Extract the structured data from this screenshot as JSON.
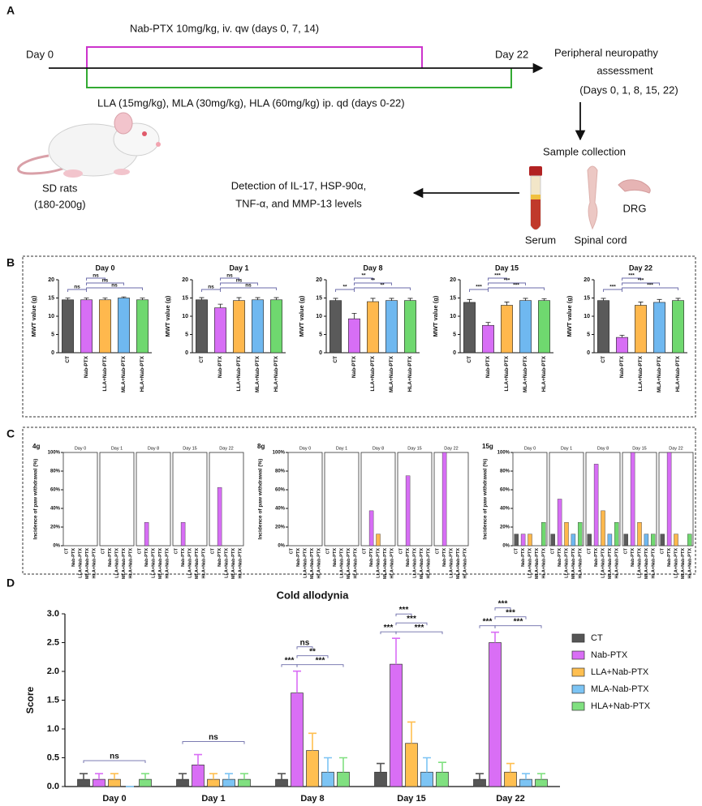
{
  "panel_labels": [
    "A",
    "B",
    "C",
    "D"
  ],
  "diagram": {
    "dose_nab": "Nab-PTX 10mg/kg, iv. qw (days 0, 7, 14)",
    "day_start": "Day 0",
    "day_end": "Day 22",
    "dose_la": "LLA (15mg/kg), MLA (30mg/kg), HLA (60mg/kg) ip. qd (days 0-22)",
    "assessment": [
      "Peripheral neuropathy",
      "assessment",
      "(Days 0, 1, 8, 15, 22)"
    ],
    "rats": [
      "SD rats",
      "(180-200g)"
    ],
    "collection": "Sample collection",
    "detection": [
      "Detection of IL-17, HSP-90α,",
      "TNF-α, and MMP-13 levels"
    ],
    "samples": [
      "Serum",
      "Spinal cord",
      "DRG"
    ]
  },
  "chart_data": [
    {
      "type": "bar",
      "title": "Day 0",
      "ylabel": "MWT value (g)",
      "categories": [
        "CT",
        "Nab-PTX",
        "LLA+Nab-PTX",
        "MLA+Nab-PTX",
        "HLA+Nab-PTX"
      ],
      "colors": [
        "#5a5a5a",
        "#d76ef5",
        "#ffb84d",
        "#6fb8f0",
        "#6fd86f"
      ],
      "values": [
        14.5,
        14.5,
        14.5,
        15,
        14.5
      ],
      "errors": [
        0.5,
        0.5,
        0.5,
        0.3,
        0.5
      ],
      "ylim": [
        0,
        20
      ],
      "yticks": [
        0,
        5,
        10,
        15,
        20
      ],
      "annotations": [
        "ns",
        "ns",
        "ns",
        "ns"
      ]
    },
    {
      "type": "bar",
      "title": "Day 1",
      "ylabel": "MWT value (g)",
      "categories": [
        "CT",
        "Nab-PTX",
        "LLA+Nab-PTX",
        "MLA+Nab-PTX",
        "HLA+Nab-PTX"
      ],
      "colors": [
        "#5a5a5a",
        "#d76ef5",
        "#ffb84d",
        "#6fb8f0",
        "#6fd86f"
      ],
      "values": [
        14.5,
        12.3,
        14.3,
        14.5,
        14.5
      ],
      "errors": [
        0.6,
        1.0,
        0.8,
        0.6,
        0.6
      ],
      "ylim": [
        0,
        20
      ],
      "yticks": [
        0,
        5,
        10,
        15,
        20
      ],
      "annotations": [
        "ns",
        "ns",
        "ns",
        "ns"
      ]
    },
    {
      "type": "bar",
      "title": "Day 8",
      "ylabel": "MWT value (g)",
      "categories": [
        "CT",
        "Nab-PTX",
        "LLA+Nab-PTX",
        "MLA+Nab-PTX",
        "HLA+Nab-PTX"
      ],
      "colors": [
        "#5a5a5a",
        "#d76ef5",
        "#ffb84d",
        "#6fb8f0",
        "#6fd86f"
      ],
      "values": [
        14.3,
        9.3,
        14.0,
        14.3,
        14.3
      ],
      "errors": [
        0.6,
        1.5,
        0.9,
        0.6,
        0.6
      ],
      "ylim": [
        0,
        20
      ],
      "yticks": [
        0,
        5,
        10,
        15,
        20
      ],
      "annotations": [
        "**",
        "**",
        "**",
        "**"
      ]
    },
    {
      "type": "bar",
      "title": "Day 15",
      "ylabel": "MWT value (g)",
      "categories": [
        "CT",
        "Nab-PTX",
        "LLA+Nab-PTX",
        "MLA+Nab-PTX",
        "HLA+Nab-PTX"
      ],
      "colors": [
        "#5a5a5a",
        "#d76ef5",
        "#ffb84d",
        "#6fb8f0",
        "#6fd86f"
      ],
      "values": [
        13.8,
        7.5,
        13.0,
        14.3,
        14.3
      ],
      "errors": [
        0.8,
        0.8,
        0.9,
        0.6,
        0.5
      ],
      "ylim": [
        0,
        20
      ],
      "yticks": [
        0,
        5,
        10,
        15,
        20
      ],
      "annotations": [
        "***",
        "***",
        "***",
        "***"
      ]
    },
    {
      "type": "bar",
      "title": "Day 22",
      "ylabel": "MWT value (g)",
      "categories": [
        "CT",
        "Nab-PTX",
        "LLA+Nab-PTX",
        "MLA+Nab-PTX",
        "HLA+Nab-PTX"
      ],
      "colors": [
        "#5a5a5a",
        "#d76ef5",
        "#ffb84d",
        "#6fb8f0",
        "#6fd86f"
      ],
      "values": [
        14.3,
        4.2,
        13.0,
        13.8,
        14.3
      ],
      "errors": [
        0.6,
        0.6,
        0.9,
        0.8,
        0.6
      ],
      "ylim": [
        0,
        20
      ],
      "yticks": [
        0,
        5,
        10,
        15,
        20
      ],
      "annotations": [
        "***",
        "***",
        "***",
        "***"
      ]
    },
    {
      "type": "small_multiples",
      "label": "4g",
      "ylabel": "Incidence of paw withdrawal (%)",
      "categories": [
        "CT",
        "Nab-PTX",
        "LLA+Nab-PTX",
        "MLA+Nab-PTX",
        "HLA+Nab-PTX"
      ],
      "colors": [
        "#5a5a5a",
        "#d76ef5",
        "#ffb84d",
        "#6fb8f0",
        "#6fd86f"
      ],
      "ylim": [
        0,
        100
      ],
      "yticks": [
        {
          "value": 0,
          "label": "0%"
        },
        {
          "value": 20,
          "label": "20%"
        },
        {
          "value": 40,
          "label": "40%"
        },
        {
          "value": 60,
          "label": "60%"
        },
        {
          "value": 80,
          "label": "80%"
        },
        {
          "value": 100,
          "label": "100%"
        }
      ],
      "panels": [
        {
          "title": "Day 0",
          "values": [
            0,
            0,
            0,
            0,
            0
          ]
        },
        {
          "title": "Day 1",
          "values": [
            0,
            0,
            0,
            0,
            0
          ]
        },
        {
          "title": "Day 8",
          "values": [
            0,
            25,
            0,
            0,
            0
          ]
        },
        {
          "title": "Day 15",
          "values": [
            0,
            25,
            0,
            0,
            0
          ]
        },
        {
          "title": "Day 22",
          "values": [
            0,
            62.5,
            0,
            0,
            0
          ]
        }
      ]
    },
    {
      "type": "small_multiples",
      "label": "8g",
      "ylabel": "Incidence of paw withdrawal (%)",
      "categories": [
        "CT",
        "Nab-PTX",
        "LLA+Nab-PTX",
        "MLA+Nab-PTX",
        "HLA+Nab-PTX"
      ],
      "colors": [
        "#5a5a5a",
        "#d76ef5",
        "#ffb84d",
        "#6fb8f0",
        "#6fd86f"
      ],
      "ylim": [
        0,
        100
      ],
      "yticks": [
        {
          "value": 0,
          "label": "0%"
        },
        {
          "value": 20,
          "label": "20%"
        },
        {
          "value": 40,
          "label": "40%"
        },
        {
          "value": 60,
          "label": "60%"
        },
        {
          "value": 80,
          "label": "80%"
        },
        {
          "value": 100,
          "label": "100%"
        }
      ],
      "panels": [
        {
          "title": "Day 0",
          "values": [
            0,
            0,
            0,
            0,
            0
          ]
        },
        {
          "title": "Day 1",
          "values": [
            0,
            0,
            0,
            0,
            0
          ]
        },
        {
          "title": "Day 8",
          "values": [
            0,
            37.5,
            12.5,
            0,
            0
          ]
        },
        {
          "title": "Day 15",
          "values": [
            0,
            75,
            0,
            0,
            0
          ]
        },
        {
          "title": "Day 22",
          "values": [
            0,
            100,
            0,
            0,
            0
          ]
        }
      ]
    },
    {
      "type": "small_multiples",
      "label": "15g",
      "ylabel": "Incidence of paw withdrawal (%)",
      "categories": [
        "CT",
        "Nab-PTX",
        "LLA+Nab-PTX",
        "MLA+Nab-PTX",
        "HLA+Nab-PTX"
      ],
      "colors": [
        "#5a5a5a",
        "#d76ef5",
        "#ffb84d",
        "#6fb8f0",
        "#6fd86f"
      ],
      "ylim": [
        0,
        100
      ],
      "yticks": [
        {
          "value": 0,
          "label": "0%"
        },
        {
          "value": 20,
          "label": "20%"
        },
        {
          "value": 40,
          "label": "40%"
        },
        {
          "value": 60,
          "label": "60%"
        },
        {
          "value": 80,
          "label": "80%"
        },
        {
          "value": 100,
          "label": "100%"
        }
      ],
      "panels": [
        {
          "title": "Day 0",
          "values": [
            12.5,
            12.5,
            12.5,
            0,
            25
          ]
        },
        {
          "title": "Day 1",
          "values": [
            12.5,
            50,
            25,
            12.5,
            25
          ]
        },
        {
          "title": "Day 8",
          "values": [
            12.5,
            87.5,
            37.5,
            12.5,
            25
          ]
        },
        {
          "title": "Day 15",
          "values": [
            12.5,
            100,
            25,
            12.5,
            12.5
          ]
        },
        {
          "title": "Day 22",
          "values": [
            12.5,
            100,
            12.5,
            0,
            12.5
          ]
        }
      ]
    },
    {
      "type": "grouped_bar",
      "title": "Cold allodynia",
      "ylabel": "Score",
      "categories": [
        "Day 0",
        "Day 1",
        "Day 8",
        "Day 15",
        "Day 22"
      ],
      "series": [
        {
          "name": "CT",
          "color": "#555555",
          "values": [
            0.125,
            0.125,
            0.125,
            0.25,
            0.125
          ],
          "errors": [
            0.1,
            0.1,
            0.1,
            0.15,
            0.1
          ]
        },
        {
          "name": "Nab-PTX",
          "color": "#d96ef5",
          "values": [
            0.125,
            0.375,
            1.625,
            2.125,
            2.5
          ],
          "errors": [
            0.1,
            0.18,
            0.38,
            0.45,
            0.18
          ]
        },
        {
          "name": "LLA+Nab-PTX",
          "color": "#ffbf50",
          "values": [
            0.125,
            0.125,
            0.625,
            0.75,
            0.25
          ],
          "errors": [
            0.1,
            0.1,
            0.3,
            0.37,
            0.15
          ]
        },
        {
          "name": "MLA-Nab-PTX",
          "color": "#7cc4f4",
          "values": [
            0,
            0.125,
            0.25,
            0.25,
            0.125
          ],
          "errors": [
            0,
            0.1,
            0.25,
            0.25,
            0.1
          ]
        },
        {
          "name": "HLA+Nab-PTX",
          "color": "#80e080",
          "values": [
            0.125,
            0.125,
            0.25,
            0.25,
            0.125
          ],
          "errors": [
            0.1,
            0.1,
            0.25,
            0.17,
            0.1
          ]
        }
      ],
      "ylim": [
        0,
        3
      ],
      "yticks": [
        {
          "value": 0,
          "label": "0.0"
        },
        0.5,
        {
          "value": 1,
          "label": "1.0"
        },
        1.5,
        {
          "value": 2,
          "label": "2.0"
        },
        2.5,
        {
          "value": 3,
          "label": "3.0"
        }
      ],
      "annotations": [
        [
          "ns"
        ],
        [
          "ns"
        ],
        [
          "***",
          "ns",
          "**",
          "***"
        ],
        [
          "***",
          "***",
          "***",
          "***"
        ],
        [
          "***",
          "***",
          "***",
          "***"
        ]
      ],
      "legend": "right"
    }
  ]
}
